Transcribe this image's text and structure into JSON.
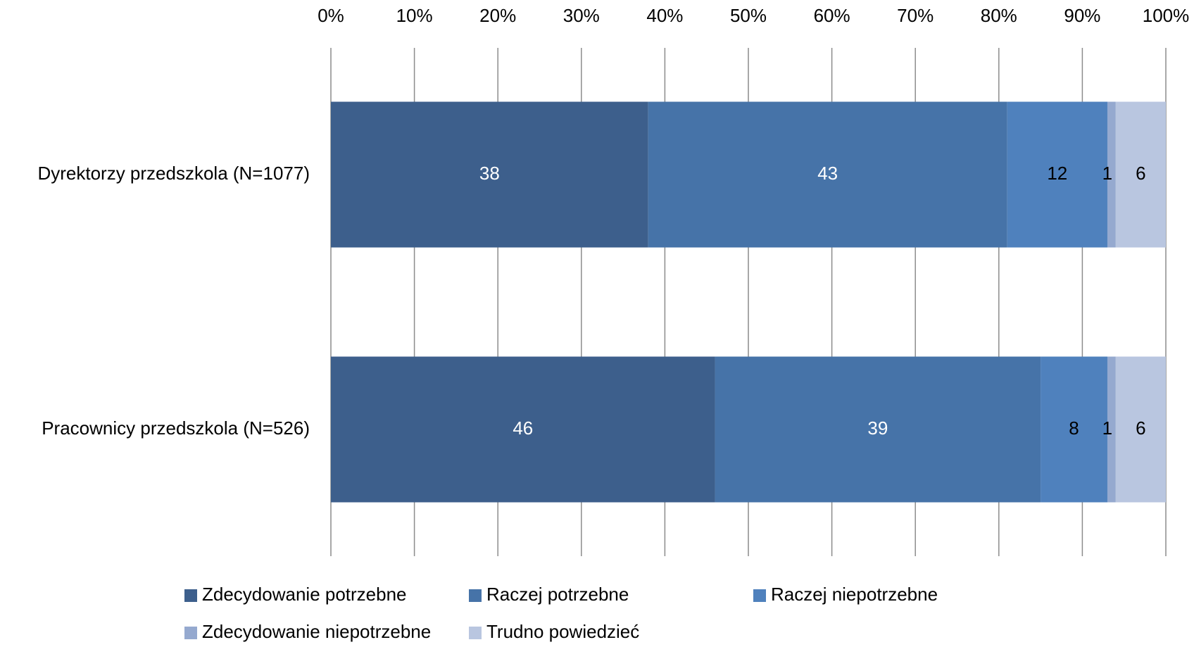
{
  "chart_data": {
    "type": "bar",
    "orientation": "horizontal",
    "stacked": true,
    "percent_stacked": true,
    "title": "",
    "xlabel": "",
    "ylabel": "",
    "xlim": [
      0,
      100
    ],
    "x_ticks": [
      "0%",
      "10%",
      "20%",
      "30%",
      "40%",
      "50%",
      "60%",
      "70%",
      "80%",
      "90%",
      "100%"
    ],
    "grid": true,
    "legend_position": "bottom",
    "categories": [
      "Dyrektorzy przedszkola (N=1077)",
      "Pracownicy przedszkola (N=526)"
    ],
    "series": [
      {
        "name": "Zdecydowanie potrzebne",
        "color": "#3d5f8c",
        "label_color": "#ffffff",
        "values": [
          38,
          46
        ]
      },
      {
        "name": "Raczej potrzebne",
        "color": "#4673a8",
        "label_color": "#ffffff",
        "values": [
          43,
          39
        ]
      },
      {
        "name": "Raczej niepotrzebne",
        "color": "#4f81bd",
        "label_color": "#000000",
        "values": [
          12,
          8
        ]
      },
      {
        "name": "Zdecydowanie niepotrzebne",
        "color": "#95a9cf",
        "label_color": "#000000",
        "values": [
          1,
          1
        ]
      },
      {
        "name": "Trudno powiedzieć",
        "color": "#b9c6e0",
        "label_color": "#000000",
        "values": [
          6,
          6
        ]
      }
    ]
  }
}
